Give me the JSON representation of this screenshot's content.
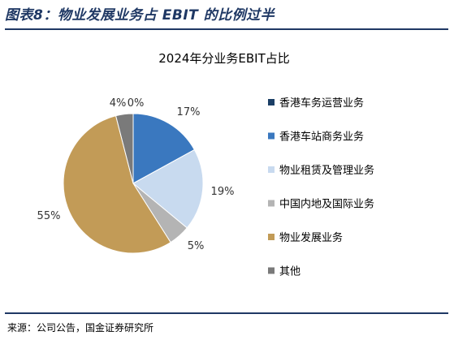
{
  "header": {
    "title": "图表8：物业发展业务占 EBIT 的比例过半"
  },
  "footer": {
    "source": "来源：公司公告，国金证券研究所"
  },
  "chart_data": {
    "type": "pie",
    "title": "2024年分业务EBIT占比",
    "slices": [
      {
        "name": "香港车务运营业务",
        "value": 0,
        "label": "0%",
        "color": "#1b3f66"
      },
      {
        "name": "香港车站商务业务",
        "value": 17,
        "label": "17%",
        "color": "#3a78bf"
      },
      {
        "name": "物业租赁及管理业务",
        "value": 19,
        "label": "19%",
        "color": "#c8daef"
      },
      {
        "name": "中国内地及国际业务",
        "value": 5,
        "label": "5%",
        "color": "#b4b4b4"
      },
      {
        "name": "物业发展业务",
        "value": 55,
        "label": "55%",
        "color": "#c29b57"
      },
      {
        "name": "其他",
        "value": 4,
        "label": "4%",
        "color": "#7a7a7a"
      }
    ],
    "legend_position": "right"
  }
}
